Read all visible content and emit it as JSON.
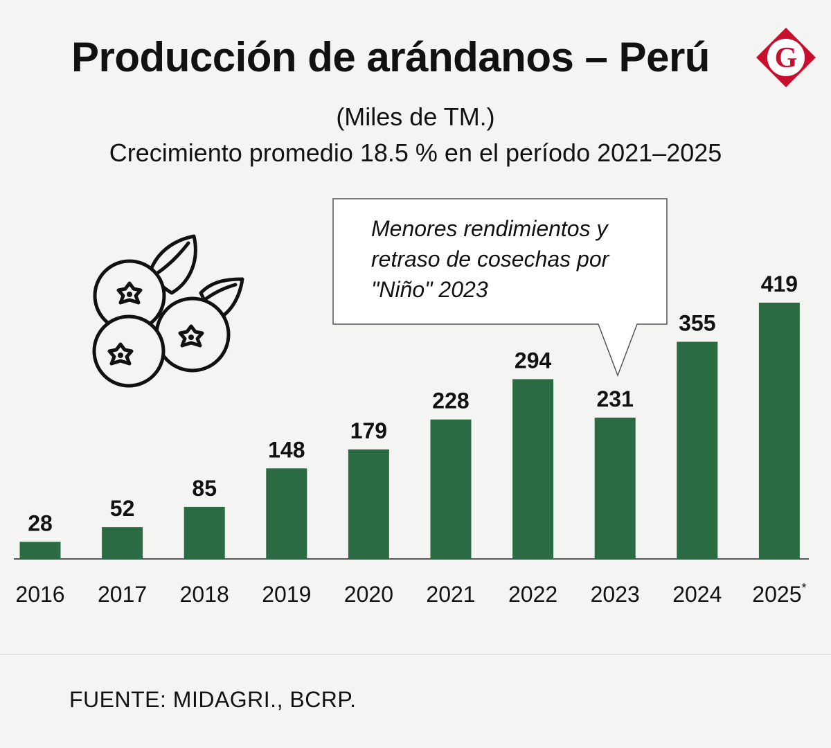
{
  "header": {
    "title": "Producción de arándanos – Perú",
    "subtitle_units": "(Miles de TM.)",
    "subtitle_growth": "Crecimiento promedio 18.5 % en el período 2021–2025",
    "logo_letter": "G"
  },
  "annotation": {
    "text": "Menores rendimientos y retraso de cosechas por \"Niño\" 2023",
    "target_category": "2023"
  },
  "footer": {
    "source": "FUENTE:  MIDAGRI., BCRP."
  },
  "colors": {
    "bar": "#2b6b44",
    "logo": "#c8102e",
    "background": "#f4f4f2"
  },
  "icons": [
    "blueberries-icon",
    "g-logo-icon"
  ],
  "chart_data": {
    "type": "bar",
    "categories": [
      "2016",
      "2017",
      "2018",
      "2019",
      "2020",
      "2021",
      "2022",
      "2023",
      "2024",
      "2025"
    ],
    "category_marks": [
      "",
      "",
      "",
      "",
      "",
      "",
      "",
      "",
      "",
      "*"
    ],
    "values": [
      28,
      52,
      85,
      148,
      179,
      228,
      294,
      231,
      355,
      419
    ],
    "ylim": [
      0,
      419
    ],
    "grid": false,
    "legend": "none"
  }
}
